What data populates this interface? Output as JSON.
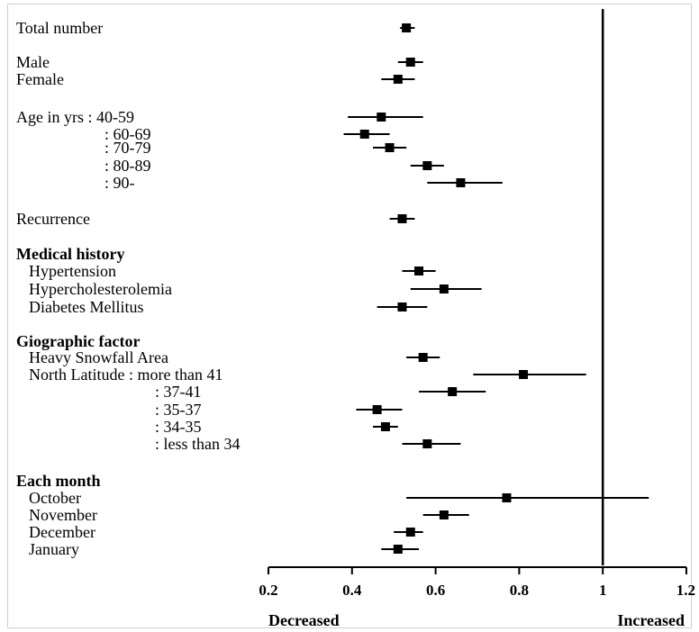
{
  "chart_data": {
    "type": "forest",
    "xlim": [
      0.2,
      1.2
    ],
    "xticks": [
      "0.2",
      "0.4",
      "0.6",
      "0.8",
      "1",
      "1.2"
    ],
    "reference_value": 1,
    "left_direction_label": "Decreased",
    "right_direction_label": "Increased",
    "rows": [
      {
        "label": "Total number",
        "bold": false,
        "est": 0.53,
        "lo": 0.515,
        "hi": 0.55
      },
      {
        "label": "Male",
        "bold": false,
        "est": 0.54,
        "lo": 0.51,
        "hi": 0.57
      },
      {
        "label": "Female",
        "bold": false,
        "est": 0.51,
        "lo": 0.47,
        "hi": 0.55
      },
      {
        "label": "Age in yrs  : 40-59",
        "bold": false,
        "est": 0.47,
        "lo": 0.39,
        "hi": 0.57
      },
      {
        "label": ": 60-69",
        "bold": false,
        "est": 0.43,
        "lo": 0.38,
        "hi": 0.49
      },
      {
        "label": ": 70-79",
        "bold": false,
        "est": 0.49,
        "lo": 0.45,
        "hi": 0.53
      },
      {
        "label": ": 80-89",
        "bold": false,
        "est": 0.58,
        "lo": 0.54,
        "hi": 0.62
      },
      {
        "label": ": 90-",
        "bold": false,
        "est": 0.66,
        "lo": 0.58,
        "hi": 0.76
      },
      {
        "label": "Recurrence",
        "bold": false,
        "est": 0.52,
        "lo": 0.49,
        "hi": 0.55
      },
      {
        "label": "Medical history",
        "bold": true
      },
      {
        "label": "Hypertension",
        "bold": false,
        "est": 0.56,
        "lo": 0.52,
        "hi": 0.6
      },
      {
        "label": "Hypercholesterolemia",
        "bold": false,
        "est": 0.62,
        "lo": 0.54,
        "hi": 0.71
      },
      {
        "label": "Diabetes Mellitus",
        "bold": false,
        "est": 0.52,
        "lo": 0.46,
        "hi": 0.58
      },
      {
        "label": "Giographic factor",
        "bold": true
      },
      {
        "label": "Heavy Snowfall Area",
        "bold": false,
        "est": 0.57,
        "lo": 0.53,
        "hi": 0.61
      },
      {
        "label": "North Latitude  : more than 41",
        "bold": false,
        "est": 0.81,
        "lo": 0.69,
        "hi": 0.96
      },
      {
        "label": ": 37-41",
        "bold": false,
        "est": 0.64,
        "lo": 0.56,
        "hi": 0.72
      },
      {
        "label": ": 35-37",
        "bold": false,
        "est": 0.46,
        "lo": 0.41,
        "hi": 0.52
      },
      {
        "label": ": 34-35",
        "bold": false,
        "est": 0.48,
        "lo": 0.45,
        "hi": 0.51
      },
      {
        "label": ": less than 34",
        "bold": false,
        "est": 0.58,
        "lo": 0.52,
        "hi": 0.66
      },
      {
        "label": "Each month",
        "bold": true
      },
      {
        "label": "October",
        "bold": false,
        "est": 0.77,
        "lo": 0.53,
        "hi": 1.11
      },
      {
        "label": "November",
        "bold": false,
        "est": 0.62,
        "lo": 0.57,
        "hi": 0.68
      },
      {
        "label": "December",
        "bold": false,
        "est": 0.54,
        "lo": 0.5,
        "hi": 0.57
      },
      {
        "label": "January",
        "bold": false,
        "est": 0.51,
        "lo": 0.47,
        "hi": 0.56
      }
    ]
  }
}
